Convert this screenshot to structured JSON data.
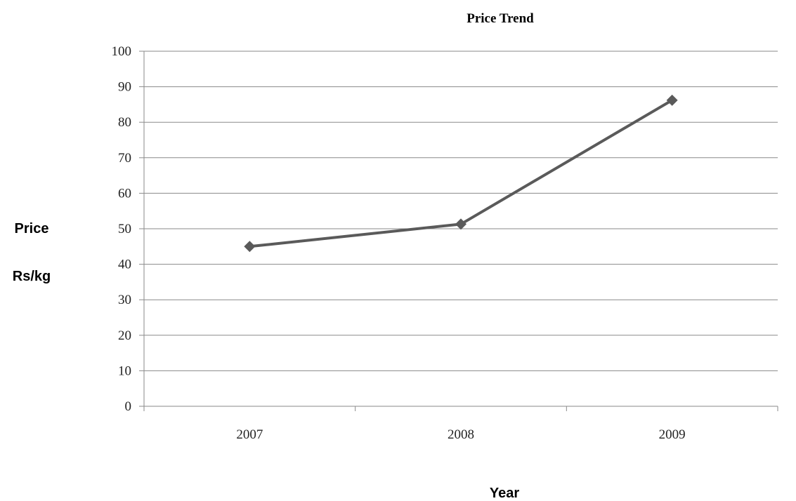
{
  "chart_data": {
    "type": "line",
    "title": "Price Trend",
    "ylabel_line1": "Price",
    "ylabel_line2": "Rs/kg",
    "xlabel": "Year",
    "categories": [
      "2007",
      "2008",
      "2009"
    ],
    "series": [
      {
        "values": [
          45,
          51.3,
          86.2
        ],
        "color": "#5a5a5a",
        "marker": "diamond"
      }
    ],
    "ylim": [
      0,
      100
    ],
    "yticks": [
      0,
      10,
      20,
      30,
      40,
      50,
      60,
      70,
      80,
      90,
      100
    ],
    "grid": true,
    "legend": "none"
  }
}
